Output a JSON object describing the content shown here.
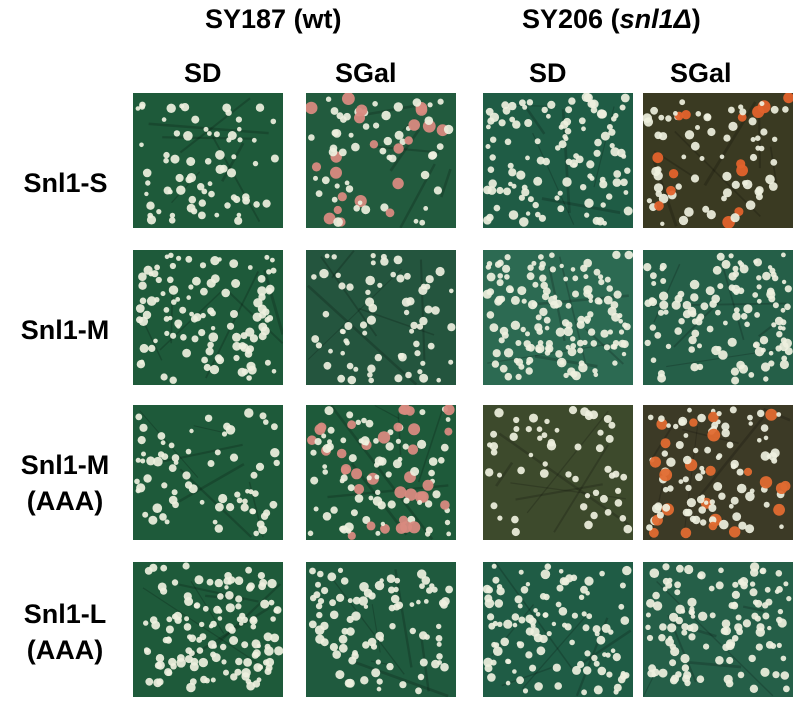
{
  "strains": [
    {
      "name": "SY187 (wt)"
    },
    {
      "name_prefix": "SY206 (",
      "name_italic": "snl1Δ",
      "name_suffix": ")"
    }
  ],
  "media": [
    "SD",
    "SGal",
    "SD",
    "SGal"
  ],
  "rows": [
    {
      "label_line1": "Snl1-S",
      "label_line2": ""
    },
    {
      "label_line1": "Snl1-M",
      "label_line2": ""
    },
    {
      "label_line1": "Snl1-M",
      "label_line2": "(AAA)"
    },
    {
      "label_line1": "Snl1-L",
      "label_line2": "(AAA)"
    }
  ],
  "plates": [
    [
      {
        "bg": "#1e5a3a",
        "red_colonies": false,
        "seed": 11,
        "count": 70
      },
      {
        "bg": "#225b3e",
        "red_colonies": true,
        "red_color": "#d88a80",
        "seed": 12,
        "count": 75
      },
      {
        "bg": "#1f5c45",
        "red_colonies": false,
        "seed": 13,
        "count": 110
      },
      {
        "bg": "#3a3a22",
        "red_colonies": true,
        "red_color": "#e2622c",
        "seed": 14,
        "count": 80
      }
    ],
    [
      {
        "bg": "#1e5a3a",
        "red_colonies": false,
        "seed": 21,
        "count": 110
      },
      {
        "bg": "#24553e",
        "red_colonies": false,
        "seed": 22,
        "count": 70
      },
      {
        "bg": "#2c6a52",
        "red_colonies": false,
        "seed": 23,
        "count": 150
      },
      {
        "bg": "#255f48",
        "red_colonies": false,
        "seed": 24,
        "count": 120
      }
    ],
    [
      {
        "bg": "#1e5a3a",
        "red_colonies": false,
        "seed": 31,
        "count": 70
      },
      {
        "bg": "#1e5a3a",
        "red_colonies": true,
        "red_color": "#d88a80",
        "seed": 32,
        "count": 110
      },
      {
        "bg": "#3d4a2c",
        "red_colonies": false,
        "seed": 33,
        "count": 55
      },
      {
        "bg": "#3c3a26",
        "red_colonies": true,
        "red_color": "#e06a30",
        "seed": 34,
        "count": 110
      }
    ],
    [
      {
        "bg": "#1e5a3a",
        "red_colonies": false,
        "seed": 41,
        "count": 130
      },
      {
        "bg": "#1f5a3e",
        "red_colonies": false,
        "seed": 42,
        "count": 90
      },
      {
        "bg": "#1f5c45",
        "red_colonies": false,
        "seed": 43,
        "count": 110
      },
      {
        "bg": "#255f48",
        "red_colonies": false,
        "seed": 44,
        "count": 120
      }
    ]
  ]
}
